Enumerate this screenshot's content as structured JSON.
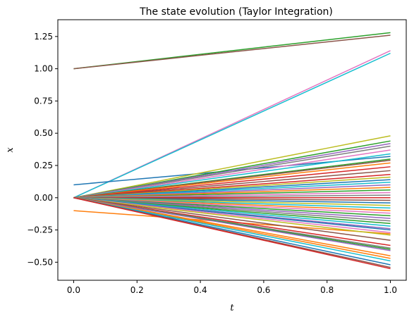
{
  "chart_data": {
    "type": "line",
    "title": "The state evolution (Taylor Integration)",
    "xlabel": "t",
    "ylabel": "x",
    "xlim": [
      -0.05,
      1.05
    ],
    "ylim": [
      -0.64,
      1.38
    ],
    "xticks": [
      0.0,
      0.2,
      0.4,
      0.6,
      0.8,
      1.0
    ],
    "xtick_labels": [
      "0.0",
      "0.2",
      "0.4",
      "0.6",
      "0.8",
      "1.0"
    ],
    "yticks": [
      -0.5,
      -0.25,
      0.0,
      0.25,
      0.5,
      0.75,
      1.0,
      1.25
    ],
    "ytick_labels": [
      "−0.50",
      "−0.25",
      "0.00",
      "0.25",
      "0.50",
      "0.75",
      "1.00",
      "1.25"
    ],
    "grid": false,
    "legend": "none",
    "x": [
      0.0,
      0.1,
      0.2,
      0.3,
      0.4,
      0.5,
      0.6,
      0.7,
      0.8,
      0.9,
      1.0
    ],
    "series_colors": [
      "#1f77b4",
      "#ff7f0e",
      "#2ca02c",
      "#d62728",
      "#9467bd",
      "#8c564b",
      "#e377c2",
      "#7f7f7f",
      "#bcbd22",
      "#17becf"
    ],
    "series": [
      {
        "values": [
          1.0,
          1.028,
          1.056,
          1.084,
          1.112,
          1.14,
          1.168,
          1.196,
          1.224,
          1.252,
          1.28
        ],
        "color": "#2ca02c"
      },
      {
        "values": [
          1.0,
          1.026,
          1.052,
          1.078,
          1.104,
          1.13,
          1.156,
          1.182,
          1.208,
          1.234,
          1.26
        ],
        "color": "#8c564b"
      },
      {
        "values": [
          0.0,
          0.114,
          0.228,
          0.342,
          0.456,
          0.57,
          0.684,
          0.798,
          0.912,
          1.026,
          1.14
        ],
        "color": "#e377c2"
      },
      {
        "values": [
          0.0,
          0.112,
          0.224,
          0.336,
          0.448,
          0.56,
          0.672,
          0.784,
          0.896,
          1.008,
          1.12
        ],
        "color": "#17becf"
      },
      {
        "values": [
          0.1,
          0.122,
          0.144,
          0.166,
          0.188,
          0.21,
          0.232,
          0.254,
          0.276,
          0.298,
          0.32
        ],
        "color": "#1f77b4"
      },
      {
        "values": [
          -0.1,
          -0.118,
          -0.136,
          -0.154,
          -0.172,
          -0.19,
          -0.208,
          -0.226,
          -0.244,
          -0.262,
          -0.28
        ],
        "color": "#ff7f0e"
      },
      {
        "values": [
          0.0,
          0.048,
          0.096,
          0.144,
          0.192,
          0.24,
          0.288,
          0.336,
          0.384,
          0.432,
          0.48
        ],
        "color": "#bcbd22"
      },
      {
        "values": [
          0.0,
          0.044,
          0.088,
          0.132,
          0.176,
          0.22,
          0.264,
          0.308,
          0.352,
          0.396,
          0.44
        ],
        "color": "#2ca02c"
      },
      {
        "values": [
          0.0,
          0.042,
          0.084,
          0.126,
          0.168,
          0.21,
          0.252,
          0.294,
          0.336,
          0.378,
          0.42
        ],
        "color": "#9467bd"
      },
      {
        "values": [
          0.0,
          0.04,
          0.08,
          0.12,
          0.16,
          0.2,
          0.24,
          0.28,
          0.32,
          0.36,
          0.4
        ],
        "color": "#7f7f7f"
      },
      {
        "values": [
          0.0,
          0.037,
          0.074,
          0.111,
          0.148,
          0.185,
          0.222,
          0.259,
          0.296,
          0.333,
          0.37
        ],
        "color": "#e377c2"
      },
      {
        "values": [
          0.0,
          0.034,
          0.068,
          0.102,
          0.136,
          0.17,
          0.204,
          0.238,
          0.272,
          0.306,
          0.34
        ],
        "color": "#17becf"
      },
      {
        "values": [
          0.0,
          0.03,
          0.06,
          0.09,
          0.12,
          0.15,
          0.18,
          0.21,
          0.24,
          0.27,
          0.3
        ],
        "color": "#2ca02c"
      },
      {
        "values": [
          0.0,
          0.029,
          0.058,
          0.087,
          0.116,
          0.145,
          0.174,
          0.203,
          0.232,
          0.261,
          0.29
        ],
        "color": "#8c564b"
      },
      {
        "values": [
          0.0,
          0.027,
          0.054,
          0.081,
          0.108,
          0.135,
          0.162,
          0.189,
          0.216,
          0.243,
          0.27
        ],
        "color": "#ff7f0e"
      },
      {
        "values": [
          0.0,
          0.024,
          0.048,
          0.072,
          0.096,
          0.12,
          0.144,
          0.168,
          0.192,
          0.216,
          0.24
        ],
        "color": "#d62728"
      },
      {
        "values": [
          0.0,
          0.021,
          0.042,
          0.063,
          0.084,
          0.105,
          0.126,
          0.147,
          0.168,
          0.189,
          0.21
        ],
        "color": "#8c564b"
      },
      {
        "values": [
          0.0,
          0.018,
          0.036,
          0.054,
          0.072,
          0.09,
          0.108,
          0.126,
          0.144,
          0.162,
          0.18
        ],
        "color": "#d62728"
      },
      {
        "values": [
          0.0,
          0.016,
          0.032,
          0.048,
          0.064,
          0.08,
          0.096,
          0.112,
          0.128,
          0.144,
          0.16
        ],
        "color": "#bcbd22"
      },
      {
        "values": [
          0.0,
          0.014,
          0.028,
          0.042,
          0.056,
          0.07,
          0.084,
          0.098,
          0.112,
          0.126,
          0.14
        ],
        "color": "#1f77b4"
      },
      {
        "values": [
          0.0,
          0.012,
          0.024,
          0.036,
          0.048,
          0.06,
          0.072,
          0.084,
          0.096,
          0.108,
          0.12
        ],
        "color": "#17becf"
      },
      {
        "values": [
          0.0,
          0.01,
          0.02,
          0.03,
          0.04,
          0.05,
          0.06,
          0.07,
          0.08,
          0.09,
          0.1
        ],
        "color": "#9467bd"
      },
      {
        "values": [
          0.0,
          0.008,
          0.016,
          0.024,
          0.032,
          0.04,
          0.048,
          0.056,
          0.064,
          0.072,
          0.08
        ],
        "color": "#ff7f0e"
      },
      {
        "values": [
          0.0,
          0.006,
          0.012,
          0.018,
          0.024,
          0.03,
          0.036,
          0.042,
          0.048,
          0.054,
          0.06
        ],
        "color": "#2ca02c"
      },
      {
        "values": [
          0.0,
          0.004,
          0.008,
          0.012,
          0.016,
          0.02,
          0.024,
          0.028,
          0.032,
          0.036,
          0.04
        ],
        "color": "#e377c2"
      },
      {
        "values": [
          0.0,
          0.002,
          0.004,
          0.006,
          0.008,
          0.01,
          0.012,
          0.014,
          0.016,
          0.018,
          0.02
        ],
        "color": "#7f7f7f"
      },
      {
        "values": [
          0.0,
          0.0,
          0.0,
          0.0,
          0.0,
          0.0,
          0.0,
          0.0,
          0.0,
          0.0,
          0.0
        ],
        "color": "#d62728"
      },
      {
        "values": [
          0.0,
          -0.002,
          -0.004,
          -0.006,
          -0.008,
          -0.01,
          -0.012,
          -0.014,
          -0.016,
          -0.018,
          -0.02
        ],
        "color": "#8c564b"
      },
      {
        "values": [
          0.0,
          -0.004,
          -0.008,
          -0.012,
          -0.016,
          -0.02,
          -0.024,
          -0.028,
          -0.032,
          -0.036,
          -0.04
        ],
        "color": "#1f77b4"
      },
      {
        "values": [
          0.0,
          -0.006,
          -0.012,
          -0.018,
          -0.024,
          -0.03,
          -0.036,
          -0.042,
          -0.048,
          -0.054,
          -0.06
        ],
        "color": "#bcbd22"
      },
      {
        "values": [
          0.0,
          -0.008,
          -0.016,
          -0.024,
          -0.032,
          -0.04,
          -0.048,
          -0.056,
          -0.064,
          -0.072,
          -0.08
        ],
        "color": "#17becf"
      },
      {
        "values": [
          0.0,
          -0.01,
          -0.02,
          -0.03,
          -0.04,
          -0.05,
          -0.06,
          -0.07,
          -0.08,
          -0.09,
          -0.1
        ],
        "color": "#ff7f0e"
      },
      {
        "values": [
          0.0,
          -0.012,
          -0.024,
          -0.036,
          -0.048,
          -0.06,
          -0.072,
          -0.084,
          -0.096,
          -0.108,
          -0.12
        ],
        "color": "#e377c2"
      },
      {
        "values": [
          0.0,
          -0.014,
          -0.028,
          -0.042,
          -0.056,
          -0.07,
          -0.084,
          -0.098,
          -0.112,
          -0.126,
          -0.14
        ],
        "color": "#2ca02c"
      },
      {
        "values": [
          0.0,
          -0.016,
          -0.032,
          -0.048,
          -0.064,
          -0.08,
          -0.096,
          -0.112,
          -0.128,
          -0.144,
          -0.16
        ],
        "color": "#9467bd"
      },
      {
        "values": [
          0.0,
          -0.018,
          -0.036,
          -0.054,
          -0.072,
          -0.09,
          -0.108,
          -0.126,
          -0.144,
          -0.162,
          -0.18
        ],
        "color": "#7f7f7f"
      },
      {
        "values": [
          0.0,
          -0.02,
          -0.04,
          -0.06,
          -0.08,
          -0.1,
          -0.12,
          -0.14,
          -0.16,
          -0.18,
          -0.2
        ],
        "color": "#2ca02c"
      },
      {
        "values": [
          0.0,
          -0.022,
          -0.044,
          -0.066,
          -0.088,
          -0.11,
          -0.132,
          -0.154,
          -0.176,
          -0.198,
          -0.22
        ],
        "color": "#17becf"
      },
      {
        "values": [
          0.0,
          -0.024,
          -0.048,
          -0.072,
          -0.096,
          -0.12,
          -0.144,
          -0.168,
          -0.192,
          -0.216,
          -0.24
        ],
        "color": "#9467bd"
      },
      {
        "values": [
          0.0,
          -0.025,
          -0.05,
          -0.075,
          -0.1,
          -0.125,
          -0.15,
          -0.175,
          -0.2,
          -0.225,
          -0.25
        ],
        "color": "#1f77b4"
      },
      {
        "values": [
          0.0,
          -0.027,
          -0.054,
          -0.081,
          -0.108,
          -0.135,
          -0.162,
          -0.189,
          -0.216,
          -0.243,
          -0.27
        ],
        "color": "#e377c2"
      },
      {
        "values": [
          0.0,
          -0.029,
          -0.058,
          -0.087,
          -0.116,
          -0.145,
          -0.174,
          -0.203,
          -0.232,
          -0.261,
          -0.29
        ],
        "color": "#bcbd22"
      },
      {
        "values": [
          0.0,
          -0.033,
          -0.066,
          -0.099,
          -0.132,
          -0.165,
          -0.198,
          -0.231,
          -0.264,
          -0.297,
          -0.33
        ],
        "color": "#8c564b"
      },
      {
        "values": [
          0.0,
          -0.037,
          -0.074,
          -0.111,
          -0.148,
          -0.185,
          -0.222,
          -0.259,
          -0.296,
          -0.333,
          -0.37
        ],
        "color": "#d62728"
      },
      {
        "values": [
          0.0,
          -0.039,
          -0.078,
          -0.117,
          -0.156,
          -0.195,
          -0.234,
          -0.273,
          -0.312,
          -0.351,
          -0.39
        ],
        "color": "#7f7f7f"
      },
      {
        "values": [
          0.0,
          -0.04,
          -0.08,
          -0.12,
          -0.16,
          -0.2,
          -0.24,
          -0.28,
          -0.32,
          -0.36,
          -0.4
        ],
        "color": "#2ca02c"
      },
      {
        "values": [
          0.0,
          -0.041,
          -0.082,
          -0.123,
          -0.164,
          -0.205,
          -0.246,
          -0.287,
          -0.328,
          -0.369,
          -0.41
        ],
        "color": "#9467bd"
      },
      {
        "values": [
          0.0,
          -0.045,
          -0.09,
          -0.135,
          -0.18,
          -0.225,
          -0.27,
          -0.315,
          -0.36,
          -0.405,
          -0.45
        ],
        "color": "#ff7f0e"
      },
      {
        "values": [
          0.0,
          -0.047,
          -0.094,
          -0.141,
          -0.188,
          -0.235,
          -0.282,
          -0.329,
          -0.376,
          -0.423,
          -0.47
        ],
        "color": "#ff7f0e"
      },
      {
        "values": [
          0.0,
          -0.049,
          -0.098,
          -0.147,
          -0.196,
          -0.245,
          -0.294,
          -0.343,
          -0.392,
          -0.441,
          -0.49
        ],
        "color": "#17becf"
      },
      {
        "values": [
          0.0,
          -0.052,
          -0.104,
          -0.156,
          -0.208,
          -0.26,
          -0.312,
          -0.364,
          -0.416,
          -0.468,
          -0.52
        ],
        "color": "#1f77b4"
      },
      {
        "values": [
          0.0,
          -0.054,
          -0.108,
          -0.162,
          -0.216,
          -0.27,
          -0.324,
          -0.378,
          -0.432,
          -0.486,
          -0.54
        ],
        "color": "#8c564b"
      },
      {
        "values": [
          0.0,
          -0.055,
          -0.11,
          -0.165,
          -0.22,
          -0.275,
          -0.33,
          -0.385,
          -0.44,
          -0.495,
          -0.55
        ],
        "color": "#d62728"
      }
    ]
  }
}
